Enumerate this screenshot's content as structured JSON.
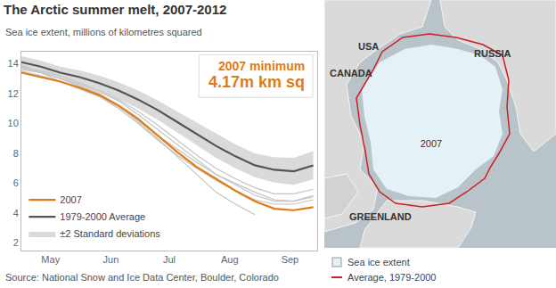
{
  "chart_data": {
    "type": "line",
    "title": "The Arctic summer melt, 2007-2012",
    "subtitle": "Sea ice extent, millions of kilometres squared",
    "source": "Source: National Snow and Ice Data Center, Boulder, Colorado",
    "annotations": [
      "2007 minimum",
      "4.17m km sq"
    ],
    "x": [
      121,
      131,
      141,
      151,
      161,
      171,
      181,
      191,
      201,
      211,
      221,
      231,
      241,
      251,
      261,
      271
    ],
    "xlim": [
      121,
      273
    ],
    "xticks": [
      {
        "value": 136,
        "label": "May"
      },
      {
        "value": 167,
        "label": "Jun"
      },
      {
        "value": 197,
        "label": "Jul"
      },
      {
        "value": 228,
        "label": "Aug"
      },
      {
        "value": 259,
        "label": "Sep"
      }
    ],
    "ylim": [
      1.5,
      14.8
    ],
    "yticks": [
      2,
      4,
      6,
      8,
      10,
      12,
      14
    ],
    "grid": false,
    "legend": "lower left",
    "series": [
      {
        "name": "±2 Standard deviations",
        "type": "band",
        "color": "#dadada",
        "lower": [
          13.7,
          13.4,
          13.0,
          12.65,
          12.2,
          11.65,
          11.0,
          10.25,
          9.4,
          8.55,
          7.7,
          7.0,
          6.4,
          6.05,
          5.9,
          6.25
        ],
        "upper": [
          14.5,
          14.2,
          13.8,
          13.55,
          13.2,
          12.75,
          12.2,
          11.55,
          10.8,
          10.05,
          9.3,
          8.6,
          8.0,
          7.75,
          7.7,
          8.15
        ]
      },
      {
        "color": "#c4c4c4",
        "values": [
          13.6,
          13.4,
          13.0,
          12.6,
          12.1,
          11.5,
          10.6,
          9.6,
          8.6,
          7.6,
          6.6,
          5.9,
          5.2,
          4.8,
          4.8,
          5.2
        ]
      },
      {
        "color": "#c4c4c4",
        "values": [
          13.8,
          13.5,
          13.2,
          12.7,
          12.2,
          11.6,
          10.8,
          9.9,
          8.9,
          7.9,
          7.0,
          6.3,
          5.7,
          5.3,
          5.3,
          5.6
        ]
      },
      {
        "color": "#c4c4c4",
        "values": [
          13.9,
          13.4,
          12.8,
          12.3,
          11.8,
          11.1,
          10.2,
          9.2,
          8.3,
          7.4,
          6.6,
          6.0,
          5.4,
          4.9,
          4.8,
          5.1
        ]
      },
      {
        "color": "#c4c4c4",
        "values": [
          13.5,
          13.2,
          12.8,
          12.3,
          11.8,
          11.0,
          10.0,
          8.9,
          7.9,
          7.0,
          6.2,
          5.5,
          4.9,
          4.6,
          4.6,
          4.9
        ]
      },
      {
        "color": "#c4c4c4",
        "values": [
          13.7,
          13.4,
          13.0,
          12.5,
          12.0,
          11.2,
          10.1,
          9.0,
          7.8,
          6.6,
          5.4,
          4.6,
          3.9,
          null,
          null,
          null
        ]
      },
      {
        "name": "1979-2000 Average",
        "color": "#555555",
        "values": [
          14.1,
          13.8,
          13.4,
          13.1,
          12.7,
          12.2,
          11.6,
          10.9,
          10.1,
          9.3,
          8.5,
          7.8,
          7.2,
          6.9,
          6.8,
          7.2
        ]
      },
      {
        "name": "2007",
        "color": "#e07b16",
        "values": [
          13.4,
          13.1,
          12.8,
          12.4,
          11.9,
          11.2,
          10.3,
          9.2,
          8.1,
          7.1,
          6.3,
          5.5,
          4.8,
          4.3,
          4.2,
          4.4
        ]
      }
    ]
  },
  "map": {
    "places": [
      "USA",
      "CANADA",
      "RUSSIA",
      "GREENLAND"
    ],
    "ice_label": "2007",
    "legend": [
      {
        "text": "Sea ice extent",
        "color": "#e4f1f7"
      },
      {
        "text": "Average, 1979-2000",
        "color": "#cc1f1f"
      }
    ]
  }
}
